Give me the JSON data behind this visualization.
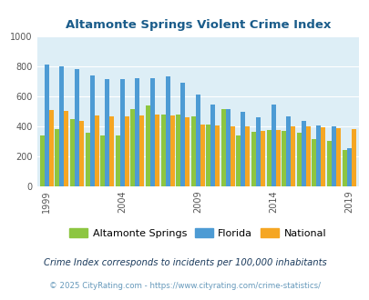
{
  "title": "Altamonte Springs Violent Crime Index",
  "years": [
    1999,
    2000,
    2001,
    2002,
    2003,
    2004,
    2005,
    2006,
    2007,
    2008,
    2009,
    2010,
    2011,
    2012,
    2013,
    2014,
    2015,
    2016,
    2017,
    2018,
    2019
  ],
  "altamonte": [
    335,
    380,
    445,
    355,
    335,
    335,
    510,
    540,
    475,
    475,
    465,
    410,
    510,
    335,
    360,
    375,
    370,
    355,
    310,
    300,
    240
  ],
  "florida": [
    810,
    800,
    780,
    740,
    710,
    710,
    720,
    720,
    730,
    690,
    610,
    545,
    510,
    495,
    460,
    545,
    465,
    435,
    405,
    395,
    250
  ],
  "national": [
    505,
    500,
    435,
    470,
    465,
    465,
    470,
    475,
    470,
    460,
    410,
    405,
    395,
    395,
    370,
    375,
    395,
    395,
    390,
    385,
    380
  ],
  "color_altamonte": "#8dc641",
  "color_florida": "#4d9bd4",
  "color_national": "#f5a623",
  "bg_color": "#ddeef6",
  "ylim": [
    0,
    1000
  ],
  "yticks": [
    0,
    200,
    400,
    600,
    800,
    1000
  ],
  "xlabel_ticks": [
    1999,
    2004,
    2009,
    2014,
    2019
  ],
  "legend_labels": [
    "Altamonte Springs",
    "Florida",
    "National"
  ],
  "footnote1": "Crime Index corresponds to incidents per 100,000 inhabitants",
  "footnote2": "© 2025 CityRating.com - https://www.cityrating.com/crime-statistics/",
  "title_color": "#1a5c8a",
  "footnote1_color": "#1a3a5c",
  "footnote2_color": "#6699bb"
}
